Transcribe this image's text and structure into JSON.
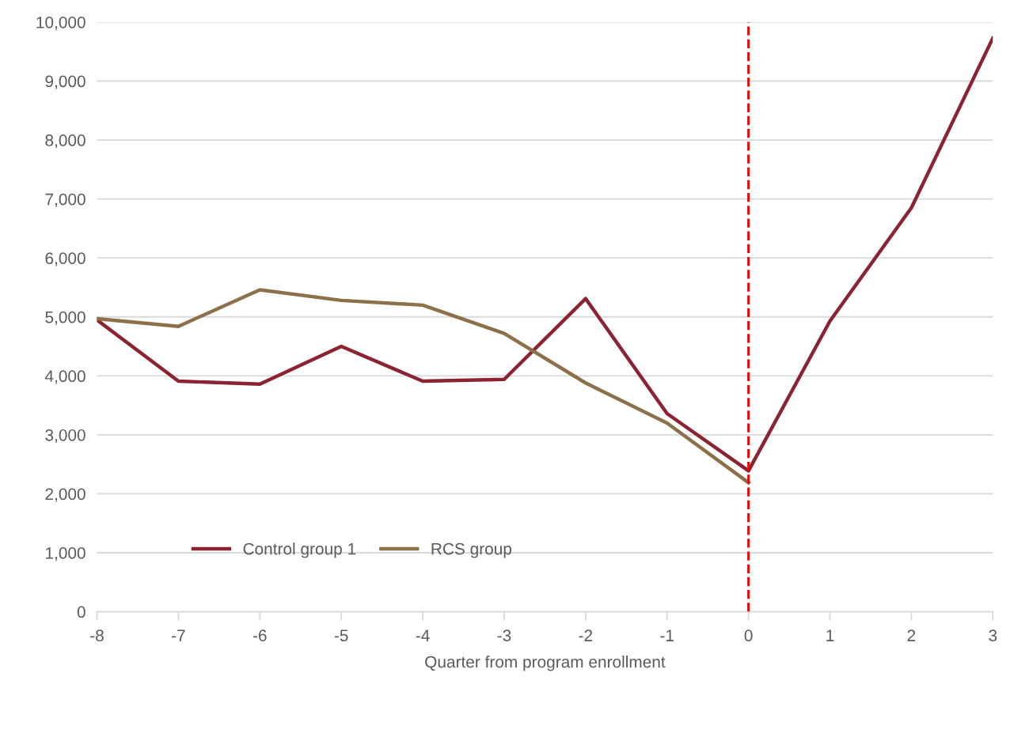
{
  "chart_data": {
    "type": "line",
    "xlabel": "Quarter from program enrollment",
    "x": [
      -8,
      -7,
      -6,
      -5,
      -4,
      -3,
      -2,
      -1,
      0,
      1,
      2,
      3
    ],
    "series": [
      {
        "name": "Control group 1",
        "color": "#8b2332",
        "values": [
          4950,
          3910,
          3860,
          4500,
          3910,
          3940,
          5310,
          3360,
          2390,
          4930,
          6850,
          9730
        ]
      },
      {
        "name": "RCS group",
        "color": "#8c7049",
        "values": [
          4970,
          4840,
          5460,
          5280,
          5200,
          4720,
          3880,
          3200,
          2190,
          null,
          null,
          null
        ]
      }
    ],
    "xlim": [
      -8,
      3
    ],
    "xticks": [
      -8,
      -7,
      -6,
      -5,
      -4,
      -3,
      -2,
      -1,
      0,
      1,
      2,
      3
    ],
    "ylim": [
      0,
      10000
    ],
    "yticks": [
      {
        "value": 0,
        "label": "0"
      },
      {
        "value": 1000,
        "label": "1,000"
      },
      {
        "value": 2000,
        "label": "2,000"
      },
      {
        "value": 3000,
        "label": "3,000"
      },
      {
        "value": 4000,
        "label": "4,000"
      },
      {
        "value": 5000,
        "label": "5,000"
      },
      {
        "value": 6000,
        "label": "6,000"
      },
      {
        "value": 7000,
        "label": "7,000"
      },
      {
        "value": 8000,
        "label": "8,000"
      },
      {
        "value": 9000,
        "label": "9,000"
      },
      {
        "value": 10000,
        "label": "10,000"
      }
    ],
    "ref_lines": [
      {
        "axis": "x",
        "value": 0,
        "color": "#ff0000",
        "line_style": "dashed"
      }
    ],
    "grid": "y",
    "legend": "bottom left",
    "marker": "none",
    "line_style": "solid"
  }
}
